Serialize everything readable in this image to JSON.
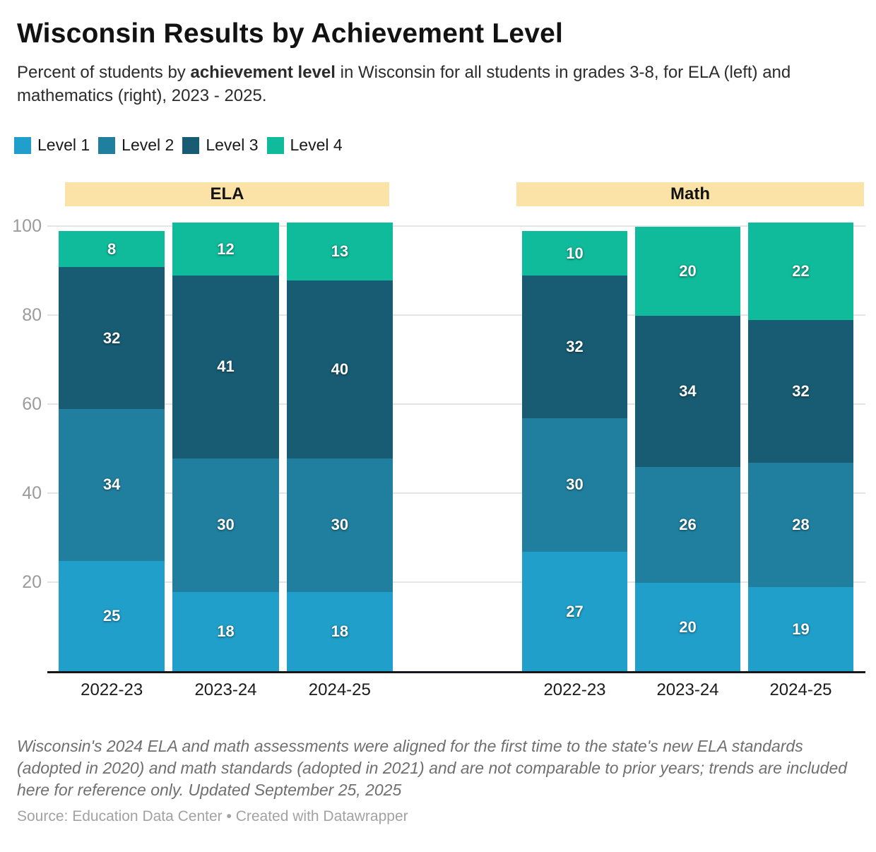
{
  "header": {
    "title": "Wisconsin Results by Achievement Level",
    "subtitle": {
      "prefix": "Percent of students by ",
      "bold": "achievement level",
      "suffix": " in Wisconsin for all students in grades 3-8, for ELA (left) and mathematics (right), 2023 - 2025."
    }
  },
  "legend": {
    "items": [
      {
        "label": "Level 1",
        "color": "#209fca"
      },
      {
        "label": "Level 2",
        "color": "#207f9e"
      },
      {
        "label": "Level 3",
        "color": "#175c73"
      },
      {
        "label": "Level 4",
        "color": "#0fbb9b"
      }
    ]
  },
  "chart_data": {
    "type": "bar",
    "stacked": true,
    "ylim": [
      0,
      100
    ],
    "yticks": [
      20,
      40,
      60,
      80,
      100
    ],
    "grid": true,
    "legend_position": "top-left",
    "band_color": "#fbe2a6",
    "categories": [
      "2022-23",
      "2023-24",
      "2024-25"
    ],
    "groups": [
      {
        "label": "ELA",
        "series": [
          {
            "name": "Level 1",
            "color": "#209fca",
            "values": [
              25,
              18,
              18
            ]
          },
          {
            "name": "Level 2",
            "color": "#207f9e",
            "values": [
              34,
              30,
              30
            ]
          },
          {
            "name": "Level 3",
            "color": "#175c73",
            "values": [
              32,
              41,
              40
            ]
          },
          {
            "name": "Level 4",
            "color": "#0fbb9b",
            "values": [
              8,
              12,
              13
            ]
          }
        ]
      },
      {
        "label": "Math",
        "series": [
          {
            "name": "Level 1",
            "color": "#209fca",
            "values": [
              27,
              20,
              19
            ]
          },
          {
            "name": "Level 2",
            "color": "#207f9e",
            "values": [
              30,
              26,
              28
            ]
          },
          {
            "name": "Level 3",
            "color": "#175c73",
            "values": [
              32,
              34,
              32
            ]
          },
          {
            "name": "Level 4",
            "color": "#0fbb9b",
            "values": [
              10,
              20,
              22
            ]
          }
        ]
      }
    ]
  },
  "footer": {
    "notes": "Wisconsin's 2024 ELA and math assessments were aligned for the first time to the state's new ELA standards (adopted in 2020) and math standards (adopted in 2021) and are not comparable to prior years; trends are included here for reference only. Updated September 25, 2025",
    "source": "Source: Education Data Center • Created with Datawrapper"
  }
}
